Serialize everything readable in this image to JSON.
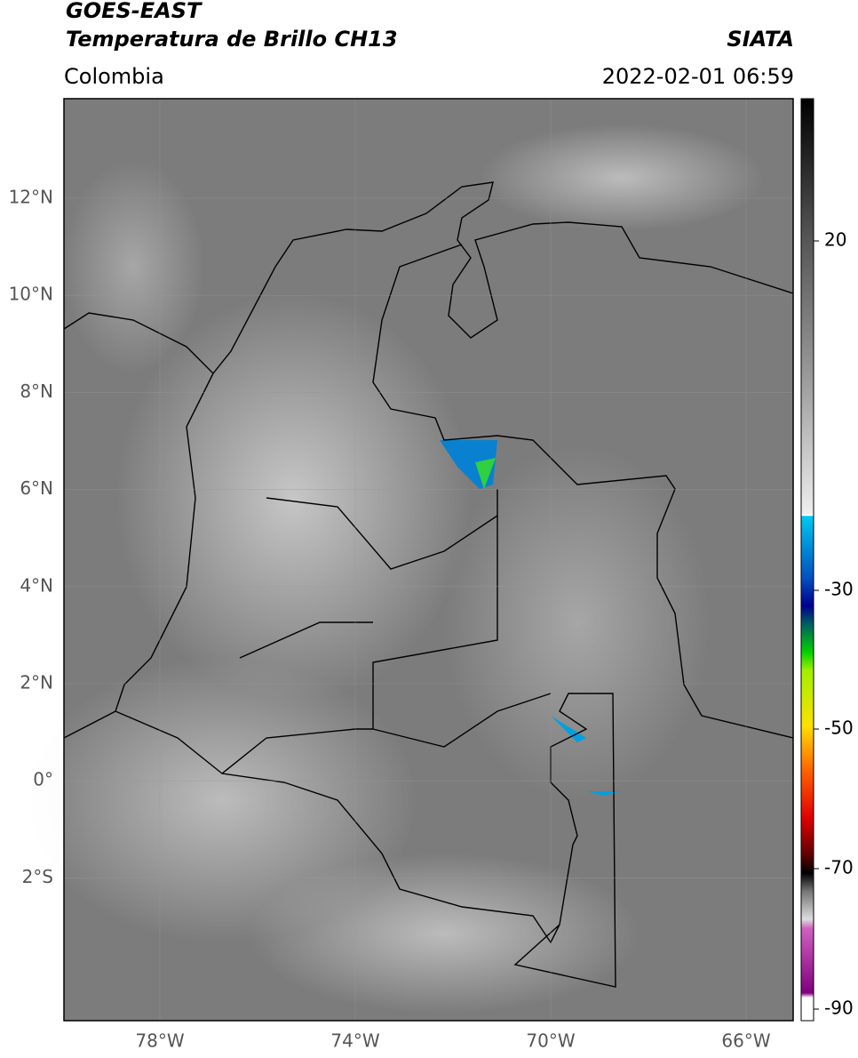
{
  "header": {
    "title": "GOES-EAST",
    "subtitle": "Temperatura de Brillo CH13",
    "source": "SIATA",
    "region": "Colombia",
    "timestamp": "2022-02-01 06:59"
  },
  "map": {
    "lat_labels": [
      "12°N",
      "10°N",
      "8°N",
      "6°N",
      "4°N",
      "2°N",
      "0°",
      "2°S"
    ],
    "lon_labels": [
      "78°W",
      "74°W",
      "70°W",
      "66°W"
    ]
  },
  "colorbar": {
    "ticks": [
      20,
      -30,
      -50,
      -70,
      -90
    ]
  }
}
